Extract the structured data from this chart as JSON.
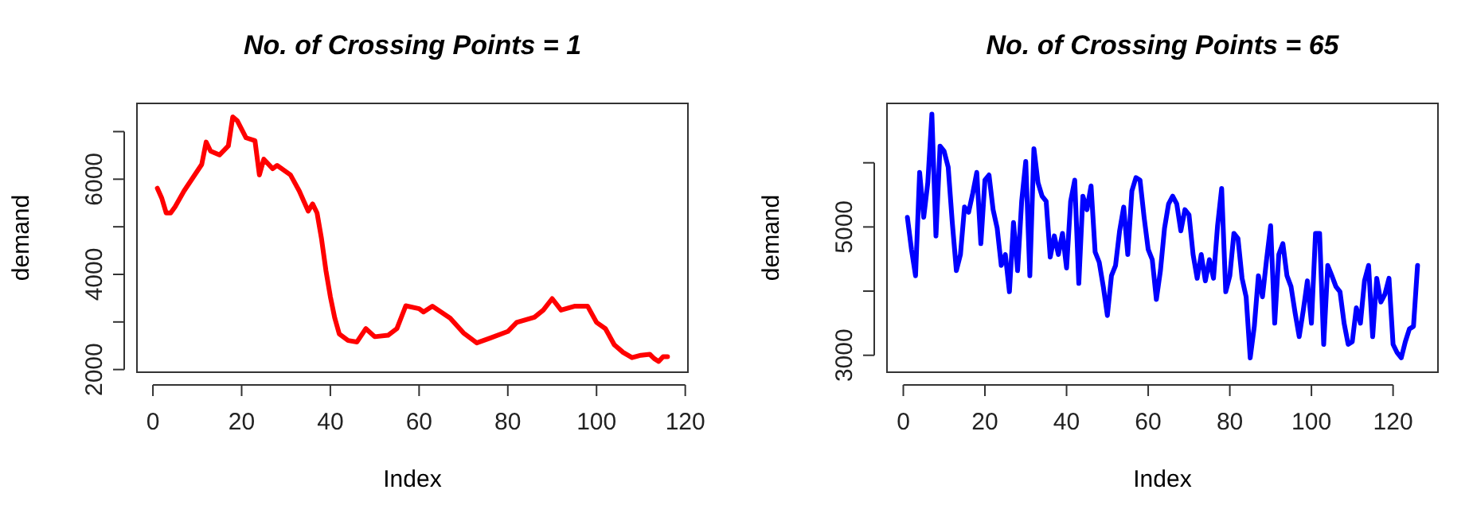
{
  "chart_data": [
    {
      "type": "line",
      "title": "No. of Crossing Points = 1",
      "xlabel": "Index",
      "ylabel": "demand",
      "xlim": [
        -3.6,
        120.6
      ],
      "ylim": [
        1944,
        7593
      ],
      "xticks": [
        0,
        20,
        40,
        60,
        80,
        100,
        120
      ],
      "yticks": [
        2000,
        {
          "value": 3000,
          "label": null
        },
        4000,
        {
          "value": 5000,
          "label": null
        },
        6000,
        {
          "value": 7000,
          "label": null
        }
      ],
      "series": [
        {
          "color": "#ff0000",
          "x": [
            1,
            2,
            3,
            4,
            5,
            7,
            9,
            11,
            12,
            13,
            15,
            17,
            18,
            19,
            21,
            23,
            24,
            25,
            27,
            28,
            31,
            33,
            35,
            36,
            37,
            38,
            39,
            40,
            41,
            42,
            44,
            46,
            48,
            50,
            53,
            55,
            57,
            60,
            61,
            63,
            67,
            70,
            73,
            76,
            80,
            82,
            86,
            88,
            90,
            92,
            95,
            98,
            100,
            102,
            104,
            106,
            108,
            110,
            112,
            113,
            114,
            115,
            116
          ],
          "values": [
            5810,
            5600,
            5290,
            5290,
            5420,
            5750,
            6030,
            6310,
            6780,
            6590,
            6510,
            6700,
            7310,
            7230,
            6870,
            6810,
            6090,
            6420,
            6220,
            6290,
            6090,
            5750,
            5330,
            5480,
            5290,
            4750,
            4080,
            3530,
            3080,
            2750,
            2610,
            2580,
            2860,
            2690,
            2720,
            2860,
            3340,
            3280,
            3210,
            3330,
            3080,
            2770,
            2560,
            2660,
            2800,
            2990,
            3100,
            3250,
            3490,
            3250,
            3330,
            3330,
            2990,
            2860,
            2520,
            2360,
            2250,
            2300,
            2320,
            2230,
            2170,
            2270,
            2270
          ]
        }
      ]
    },
    {
      "type": "line",
      "title": "No. of Crossing Points = 65",
      "xlabel": "Index",
      "ylabel": "demand",
      "xlim": [
        -4,
        131
      ],
      "ylim": [
        2736,
        6926
      ],
      "xticks": [
        0,
        20,
        40,
        60,
        80,
        100,
        120
      ],
      "yticks": [
        3000,
        {
          "value": 4000,
          "label": null
        },
        5000,
        {
          "value": 6000,
          "label": null
        }
      ],
      "series": [
        {
          "color": "#0000ff",
          "x": [
            1,
            2,
            3,
            4,
            5,
            6,
            7,
            8,
            9,
            10,
            11,
            12,
            13,
            14,
            15,
            16,
            17,
            18,
            19,
            20,
            21,
            22,
            23,
            24,
            25,
            26,
            27,
            28,
            29,
            30,
            31,
            32,
            33,
            34,
            35,
            36,
            37,
            38,
            39,
            40,
            41,
            42,
            43,
            44,
            45,
            46,
            47,
            48,
            49,
            50,
            51,
            52,
            53,
            54,
            55,
            56,
            57,
            58,
            59,
            60,
            61,
            62,
            63,
            64,
            65,
            66,
            67,
            68,
            69,
            70,
            71,
            72,
            73,
            74,
            75,
            76,
            77,
            78,
            79,
            80,
            81,
            82,
            83,
            84,
            85,
            86,
            87,
            88,
            89,
            90,
            91,
            92,
            93,
            94,
            95,
            96,
            97,
            98,
            99,
            100,
            101,
            102,
            103,
            104,
            105,
            106,
            107,
            108,
            109,
            110,
            111,
            112,
            113,
            114,
            115,
            116,
            117,
            118,
            119,
            120,
            121,
            122,
            123,
            124,
            125,
            126
          ],
          "values": [
            5150,
            4650,
            4240,
            5850,
            5150,
            5690,
            6760,
            4860,
            6260,
            6180,
            5930,
            5070,
            4320,
            4570,
            5310,
            5230,
            5520,
            5850,
            4740,
            5730,
            5810,
            5270,
            4980,
            4400,
            4570,
            3990,
            5070,
            4320,
            5400,
            6020,
            4240,
            6220,
            5690,
            5480,
            5400,
            4530,
            4860,
            4570,
            4900,
            4360,
            5400,
            5730,
            4120,
            5480,
            5270,
            5640,
            4610,
            4450,
            4070,
            3620,
            4240,
            4400,
            4940,
            5310,
            4570,
            5560,
            5770,
            5730,
            5150,
            4650,
            4490,
            3870,
            4320,
            4980,
            5360,
            5480,
            5360,
            4940,
            5270,
            5190,
            4570,
            4200,
            4570,
            4160,
            4490,
            4200,
            5020,
            5600,
            3990,
            4240,
            4900,
            4820,
            4200,
            3910,
            2960,
            3450,
            4240,
            3910,
            4490,
            5020,
            3500,
            4570,
            4740,
            4240,
            4070,
            3660,
            3290,
            3700,
            4160,
            3500,
            4900,
            4900,
            3170,
            4400,
            4240,
            4070,
            3990,
            3500,
            3170,
            3210,
            3740,
            3500,
            4160,
            4400,
            3290,
            4200,
            3830,
            3950,
            4200,
            3170,
            3040,
            2960,
            3210,
            3410,
            3450,
            4400
          ]
        }
      ]
    }
  ]
}
